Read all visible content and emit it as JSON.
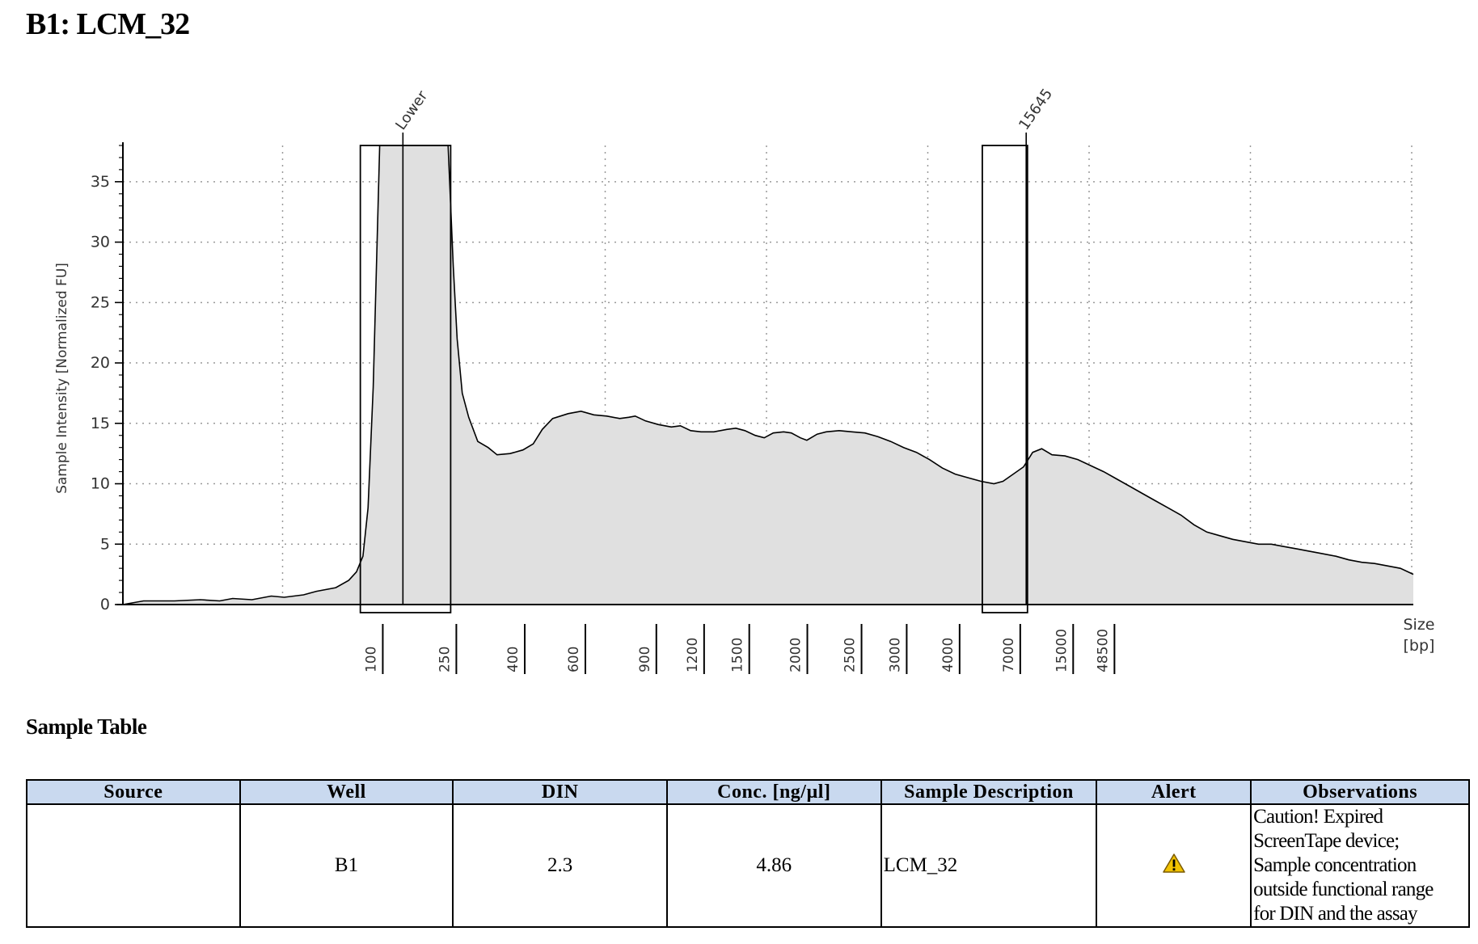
{
  "page": {
    "title": "B1: LCM_32",
    "section_title": "Sample Table"
  },
  "chart_data": {
    "type": "area",
    "title": "",
    "ylabel": "Sample Intensity [Normalized FU]",
    "xlabel": "Size [bp]",
    "xlabel_lines": [
      "Size",
      "[bp]"
    ],
    "ylim": [
      0,
      38
    ],
    "yticks": [
      0,
      5,
      10,
      15,
      20,
      25,
      30,
      35
    ],
    "grid": true,
    "size_ladder_bp": [
      100,
      250,
      400,
      600,
      900,
      1200,
      1500,
      2000,
      2500,
      3000,
      4000,
      7000,
      15000,
      48500
    ],
    "size_ladder_labels": [
      "100",
      "250",
      "400",
      "600",
      "900",
      "1200",
      "1500",
      "2000",
      "2500",
      "3000",
      "4000",
      "7000",
      "15000",
      "48500"
    ],
    "size_axis_position": [
      0.192,
      0.249,
      0.302,
      0.349,
      0.404,
      0.441,
      0.476,
      0.521,
      0.563,
      0.598,
      0.639,
      0.686,
      0.727,
      0.759
    ],
    "peak_annotations": [
      {
        "label": "Lower",
        "position": 0.217
      },
      {
        "label": "15645",
        "position": 0.7
      }
    ],
    "region_boxes": [
      [
        0.184,
        0.254
      ],
      [
        0.666,
        0.701
      ]
    ],
    "trace": [
      [
        0.0,
        0.0
      ],
      [
        0.016,
        0.3
      ],
      [
        0.04,
        0.3
      ],
      [
        0.06,
        0.4
      ],
      [
        0.075,
        0.3
      ],
      [
        0.085,
        0.5
      ],
      [
        0.1,
        0.4
      ],
      [
        0.115,
        0.7
      ],
      [
        0.125,
        0.6
      ],
      [
        0.14,
        0.8
      ],
      [
        0.15,
        1.1
      ],
      [
        0.165,
        1.4
      ],
      [
        0.175,
        2.0
      ],
      [
        0.181,
        2.7
      ],
      [
        0.186,
        4.0
      ],
      [
        0.19,
        8.0
      ],
      [
        0.194,
        18.0
      ],
      [
        0.197,
        30.0
      ],
      [
        0.199,
        38.0
      ],
      [
        0.252,
        38.0
      ],
      [
        0.254,
        33.0
      ],
      [
        0.256,
        28.0
      ],
      [
        0.259,
        22.0
      ],
      [
        0.263,
        17.5
      ],
      [
        0.268,
        15.5
      ],
      [
        0.275,
        13.5
      ],
      [
        0.283,
        13.0
      ],
      [
        0.29,
        12.4
      ],
      [
        0.3,
        12.5
      ],
      [
        0.31,
        12.8
      ],
      [
        0.318,
        13.3
      ],
      [
        0.325,
        14.5
      ],
      [
        0.333,
        15.4
      ],
      [
        0.345,
        15.8
      ],
      [
        0.355,
        16.0
      ],
      [
        0.365,
        15.7
      ],
      [
        0.375,
        15.6
      ],
      [
        0.385,
        15.4
      ],
      [
        0.392,
        15.5
      ],
      [
        0.397,
        15.6
      ],
      [
        0.405,
        15.2
      ],
      [
        0.415,
        14.9
      ],
      [
        0.425,
        14.7
      ],
      [
        0.432,
        14.8
      ],
      [
        0.44,
        14.4
      ],
      [
        0.448,
        14.3
      ],
      [
        0.458,
        14.3
      ],
      [
        0.468,
        14.5
      ],
      [
        0.475,
        14.6
      ],
      [
        0.482,
        14.4
      ],
      [
        0.49,
        14.0
      ],
      [
        0.497,
        13.8
      ],
      [
        0.504,
        14.2
      ],
      [
        0.512,
        14.3
      ],
      [
        0.518,
        14.2
      ],
      [
        0.525,
        13.8
      ],
      [
        0.53,
        13.6
      ],
      [
        0.538,
        14.1
      ],
      [
        0.545,
        14.3
      ],
      [
        0.555,
        14.4
      ],
      [
        0.565,
        14.3
      ],
      [
        0.575,
        14.2
      ],
      [
        0.585,
        13.9
      ],
      [
        0.595,
        13.5
      ],
      [
        0.605,
        13.0
      ],
      [
        0.615,
        12.6
      ],
      [
        0.625,
        12.0
      ],
      [
        0.635,
        11.3
      ],
      [
        0.645,
        10.8
      ],
      [
        0.655,
        10.5
      ],
      [
        0.665,
        10.2
      ],
      [
        0.675,
        10.0
      ],
      [
        0.682,
        10.2
      ],
      [
        0.69,
        10.8
      ],
      [
        0.698,
        11.4
      ],
      [
        0.705,
        12.6
      ],
      [
        0.712,
        12.9
      ],
      [
        0.72,
        12.4
      ],
      [
        0.73,
        12.3
      ],
      [
        0.74,
        12.0
      ],
      [
        0.75,
        11.5
      ],
      [
        0.76,
        11.0
      ],
      [
        0.77,
        10.4
      ],
      [
        0.78,
        9.8
      ],
      [
        0.79,
        9.2
      ],
      [
        0.8,
        8.6
      ],
      [
        0.81,
        8.0
      ],
      [
        0.82,
        7.4
      ],
      [
        0.83,
        6.6
      ],
      [
        0.84,
        6.0
      ],
      [
        0.85,
        5.7
      ],
      [
        0.86,
        5.4
      ],
      [
        0.87,
        5.2
      ],
      [
        0.88,
        5.0
      ],
      [
        0.89,
        5.0
      ],
      [
        0.9,
        4.8
      ],
      [
        0.91,
        4.6
      ],
      [
        0.92,
        4.4
      ],
      [
        0.93,
        4.2
      ],
      [
        0.94,
        4.0
      ],
      [
        0.95,
        3.7
      ],
      [
        0.96,
        3.5
      ],
      [
        0.97,
        3.4
      ],
      [
        0.98,
        3.2
      ],
      [
        0.99,
        3.0
      ],
      [
        1.0,
        2.5
      ]
    ]
  },
  "sample_table": {
    "headers": [
      "Source",
      "Well",
      "DIN",
      "Conc. [ng/µl]",
      "Sample Description",
      "Alert",
      "Observations"
    ],
    "row": {
      "source": "",
      "well": "B1",
      "din": "2.3",
      "conc": "4.86",
      "description": "LCM_32",
      "alert_icon": "warning-icon",
      "observations_lines": [
        "Caution! Expired",
        "ScreenTape device;",
        "Sample concentration",
        "outside functional range",
        "for DIN and the assay"
      ]
    }
  },
  "colors": {
    "trace_fill": "#e0e0e0",
    "header_bg": "#c9d9ef",
    "warning": "#f2c200"
  }
}
